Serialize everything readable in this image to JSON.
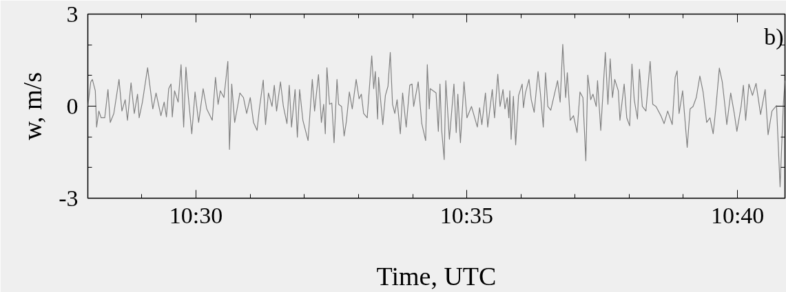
{
  "chart_data": {
    "type": "line",
    "xlabel": "Time, UTC",
    "ylabel": "w, m/s",
    "annotations": [
      "b)"
    ],
    "xlim": [
      10.4667,
      10.6813
    ],
    "ylim": [
      -3,
      3
    ],
    "xticks": [
      {
        "value": 10.4833,
        "label": null
      },
      {
        "value": 10.5,
        "label": "10:30"
      },
      {
        "value": 10.5167,
        "label": null
      },
      {
        "value": 10.5333,
        "label": null
      },
      {
        "value": 10.55,
        "label": null
      },
      {
        "value": 10.5667,
        "label": null
      },
      {
        "value": 10.5833,
        "label": "10:35"
      },
      {
        "value": 10.6,
        "label": null
      },
      {
        "value": 10.6167,
        "label": null
      },
      {
        "value": 10.6333,
        "label": null
      },
      {
        "value": 10.65,
        "label": null
      },
      {
        "value": 10.6667,
        "label": "10:40"
      }
    ],
    "yticks": [
      -3,
      {
        "value": -2,
        "label": null
      },
      {
        "value": -1,
        "label": null
      },
      0,
      {
        "value": 1,
        "label": null
      },
      {
        "value": 2,
        "label": null
      },
      3
    ],
    "series": [
      {
        "color": "#808080",
        "x": [
          10.4667,
          10.4676,
          10.4681,
          10.469,
          10.4694,
          10.4701,
          10.4708,
          10.4719,
          10.4729,
          10.4736,
          10.4747,
          10.4763,
          10.4772,
          10.4782,
          10.4789,
          10.48,
          10.481,
          10.482,
          10.4825,
          10.4835,
          10.4851,
          10.486,
          10.4867,
          10.4877,
          10.4892,
          10.4902,
          10.4909,
          10.4916,
          10.4923,
          10.4927,
          10.4934,
          10.4945,
          10.4954,
          10.4962,
          10.4969,
          10.4976,
          10.4987,
          10.4997,
          10.5008,
          10.5022,
          10.5033,
          10.505,
          10.506,
          10.5068,
          10.5075,
          10.5086,
          10.5098,
          10.5103,
          10.511,
          10.5119,
          10.5128,
          10.5135,
          10.5146,
          10.5156,
          10.5167,
          10.5177,
          10.5188,
          10.5195,
          10.5207,
          10.5214,
          10.5223,
          10.5234,
          10.5241,
          10.5248,
          10.526,
          10.5269,
          10.528,
          10.5287,
          10.5294,
          10.5305,
          10.5312,
          10.5319,
          10.5329,
          10.5345,
          10.5358,
          10.5365,
          10.5377,
          10.5386,
          10.5393,
          10.5398,
          10.5403,
          10.5411,
          10.5418,
          10.5425,
          10.5434,
          10.5439,
          10.5448,
          10.5456,
          10.5463,
          10.5472,
          10.5481,
          10.5493,
          10.5502,
          10.5509,
          10.5516,
          10.5527,
          10.5541,
          10.5547,
          10.5552,
          10.5559,
          10.5562,
          10.5575,
          10.5583,
          10.5591,
          10.5598,
          10.5605,
          10.5612,
          10.5619,
          10.5629,
          10.5636,
          10.5647,
          10.5658,
          10.5665,
          10.567,
          10.5684,
          10.5695,
          10.5707,
          10.5712,
          10.5718,
          10.5721,
          10.5739,
          10.5746,
          10.5751,
          10.5756,
          10.5764,
          10.5769,
          10.578,
          10.5794,
          10.5801,
          10.5806,
          10.5814,
          10.5825,
          10.5834,
          10.5848,
          10.5866,
          10.5873,
          10.588,
          10.5891,
          10.5898,
          10.5912,
          10.5919,
          10.5929,
          10.5936,
          10.5945,
          10.5951,
          10.5958,
          10.5963,
          10.5966,
          10.597,
          10.5977,
          10.5984,
          10.5993,
          10.6004,
          10.6008,
          10.6014,
          10.6025,
          10.6032,
          10.6041,
          10.6053,
          10.606,
          10.6069,
          10.6076,
          10.6083,
          10.6092,
          10.6113,
          10.6121,
          10.6129,
          10.6138,
          10.6143,
          10.6152,
          10.6162,
          10.6173,
          10.6182,
          10.6191,
          10.62,
          10.6206,
          10.6215,
          10.6222,
          10.6232,
          10.6236,
          10.6246,
          10.626,
          10.6268,
          10.6275,
          10.6282,
          10.6289,
          10.63,
          10.6305,
          10.6318,
          10.6326,
          10.6335,
          10.6342,
          10.6349,
          10.6359,
          10.6365,
          10.6374,
          10.6385,
          10.6398,
          10.6406,
          10.6416,
          10.6431,
          10.6441,
          10.6452,
          10.6466,
          10.6475,
          10.6481,
          10.6487,
          10.6498,
          10.6512,
          10.6521,
          10.653,
          10.654,
          10.6551,
          10.6561,
          10.6572,
          10.6582,
          10.6592,
          10.66,
          10.6611,
          10.662,
          10.6627,
          10.6634,
          10.6646,
          10.6657,
          10.6665,
          10.6678,
          10.6685,
          10.6692,
          10.6702,
          10.6713,
          10.6724,
          10.6738,
          10.6752,
          10.6761,
          10.6773,
          10.6787,
          10.6798,
          10.6808,
          10.6813
        ],
        "values": [
          -0.01,
          0.79,
          0.87,
          0.5,
          -0.68,
          -0.16,
          -0.38,
          -0.38,
          0.54,
          -0.53,
          -0.24,
          0.87,
          -0.16,
          0.21,
          -0.46,
          0.76,
          -0.24,
          0.39,
          -0.38,
          0.13,
          1.25,
          0.5,
          -0.09,
          0.43,
          -0.31,
          0.13,
          -0.35,
          0.57,
          0.72,
          -0.35,
          0.5,
          0.13,
          1.35,
          -0.68,
          1.27,
          0.35,
          -0.9,
          0.46,
          -0.53,
          0.57,
          -0.09,
          -0.46,
          0.94,
          0.06,
          0.5,
          0.28,
          1.46,
          -1.41,
          0.72,
          -0.53,
          -0.01,
          0.43,
          0.28,
          -0.24,
          0.28,
          -0.53,
          -0.79,
          -0.09,
          0.85,
          -0.6,
          0.43,
          -0.01,
          0.68,
          -0.16,
          0.79,
          -0.01,
          -0.57,
          0.68,
          -0.68,
          0.54,
          -1.01,
          0.54,
          -0.46,
          -1.12,
          0.87,
          -0.16,
          1.03,
          -0.53,
          0.06,
          -0.9,
          1.25,
          0.06,
          0.1,
          -1.19,
          0.87,
          0.06,
          -0.01,
          -0.97,
          -0.49,
          0.46,
          -0.09,
          0.87,
          0.24,
          0.39,
          -0.24,
          -0.38,
          1.64,
          0.57,
          1.13,
          -0.42,
          0.94,
          -0.6,
          0.35,
          0.65,
          1.75,
          0.06,
          -0.24,
          0.21,
          -0.9,
          0.43,
          -0.68,
          0.68,
          0.72,
          -0.01,
          0.79,
          -0.57,
          -1.12,
          1.35,
          -0.09,
          0.57,
          0.43,
          -0.82,
          0.72,
          -0.75,
          -1.74,
          0.83,
          -1.08,
          0.72,
          -0.86,
          0.39,
          -1.19,
          0.79,
          -0.38,
          -0.01,
          -0.68,
          -0.05,
          -0.6,
          0.43,
          -0.68,
          0.54,
          -0.38,
          1.04,
          -0.01,
          0.54,
          -0.09,
          0.28,
          -0.38,
          0.5,
          -1.08,
          0.32,
          -1.26,
          0.35,
          0.72,
          -0.05,
          0.43,
          0.87,
          0.21,
          -0.2,
          1.13,
          0.43,
          -0.68,
          1.09,
          -0.01,
          -0.13,
          0.83,
          0.13,
          2.01,
          0.28,
          1.09,
          -0.46,
          -0.31,
          -0.86,
          0.46,
          0.28,
          -1.78,
          1.01,
          0.21,
          0.39,
          -0.01,
          0.83,
          -0.79,
          1.75,
          0.06,
          1.54,
          0.28,
          0.87,
          0.5,
          -0.46,
          0.72,
          -0.38,
          -0.64,
          1.37,
          0.21,
          -0.42,
          1.2,
          -0.01,
          -0.16,
          1.46,
          0.06,
          -0.01,
          -0.31,
          -0.57,
          -0.16,
          -0.6,
          0.94,
          1.15,
          -0.24,
          0.5,
          -1.34,
          -0.09,
          -0.01,
          0.28,
          0.98,
          0.46,
          -0.53,
          -0.38,
          -0.9,
          -0.09,
          1.24,
          0.79,
          0.13,
          -0.6,
          0.43,
          -0.24,
          -0.82,
          -0.01,
          0.68,
          -0.46,
          0.72,
          0.35,
          0.74,
          -0.27,
          0.54,
          -0.93,
          -0.16,
          0.02,
          -2.63,
          0.06,
          0.83
        ]
      }
    ]
  }
}
